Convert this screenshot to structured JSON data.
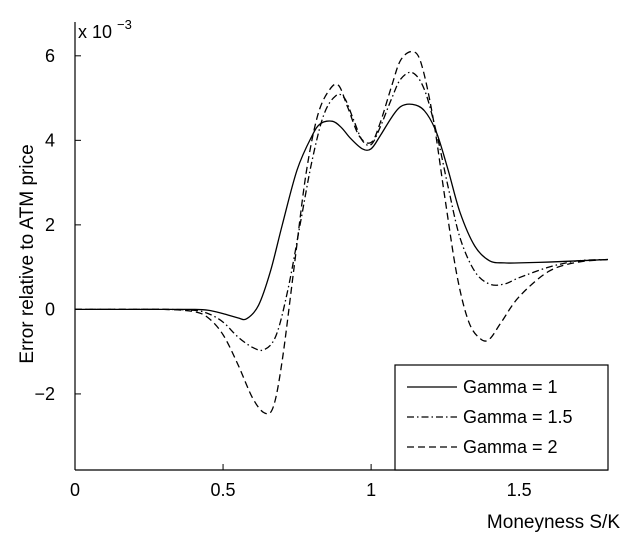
{
  "chart_data": {
    "type": "line",
    "title": "",
    "xlabel": "Moneyness S/K",
    "ylabel": "Error relative to ATM price",
    "y_exponent_label": "x 10",
    "y_exponent_power": "−3",
    "xlim": [
      0,
      1.8
    ],
    "ylim": [
      -3.8,
      6.8
    ],
    "y_scale_factor": 0.001,
    "x_ticks": [
      {
        "value": 0,
        "label": "0"
      },
      {
        "value": 0.5,
        "label": "0.5"
      },
      {
        "value": 1,
        "label": "1"
      },
      {
        "value": 1.5,
        "label": "1.5"
      }
    ],
    "y_ticks": [
      {
        "value": -2,
        "label": "−2"
      },
      {
        "value": 0,
        "label": "0"
      },
      {
        "value": 2,
        "label": "2"
      },
      {
        "value": 4,
        "label": "4"
      },
      {
        "value": 6,
        "label": "6"
      }
    ],
    "grid": false,
    "legend_position": "bottom-right",
    "series": [
      {
        "name": "Gamma = 1",
        "style": "solid",
        "color": "#000000",
        "x": [
          0,
          0.1,
          0.2,
          0.3,
          0.4,
          0.45,
          0.5,
          0.55,
          0.58,
          0.62,
          0.66,
          0.7,
          0.75,
          0.8,
          0.83,
          0.87,
          0.9,
          0.93,
          0.97,
          1.0,
          1.03,
          1.07,
          1.1,
          1.14,
          1.18,
          1.22,
          1.26,
          1.3,
          1.35,
          1.4,
          1.45,
          1.5,
          1.6,
          1.7,
          1.8
        ],
        "y": [
          0,
          0,
          0,
          0,
          0,
          -0.02,
          -0.1,
          -0.2,
          -0.22,
          0.1,
          0.9,
          2.0,
          3.3,
          4.1,
          4.4,
          4.45,
          4.3,
          4.05,
          3.8,
          3.8,
          4.1,
          4.55,
          4.8,
          4.85,
          4.7,
          4.2,
          3.3,
          2.3,
          1.5,
          1.15,
          1.1,
          1.1,
          1.12,
          1.15,
          1.18
        ]
      },
      {
        "name": "Gamma = 1.5",
        "style": "dashdot",
        "color": "#000000",
        "x": [
          0,
          0.1,
          0.2,
          0.3,
          0.4,
          0.45,
          0.5,
          0.55,
          0.6,
          0.64,
          0.68,
          0.72,
          0.76,
          0.8,
          0.84,
          0.88,
          0.91,
          0.94,
          0.97,
          1.0,
          1.03,
          1.07,
          1.1,
          1.14,
          1.18,
          1.22,
          1.26,
          1.3,
          1.35,
          1.4,
          1.45,
          1.5,
          1.6,
          1.7,
          1.8
        ],
        "y": [
          0,
          0,
          0,
          0,
          -0.02,
          -0.1,
          -0.3,
          -0.65,
          -0.9,
          -0.95,
          -0.6,
          0.5,
          2.0,
          3.5,
          4.6,
          5.05,
          5.0,
          4.5,
          4.0,
          3.9,
          4.3,
          5.0,
          5.45,
          5.6,
          5.2,
          4.2,
          2.9,
          1.7,
          0.9,
          0.6,
          0.6,
          0.75,
          1.0,
          1.15,
          1.18
        ]
      },
      {
        "name": "Gamma = 2",
        "style": "dashed",
        "color": "#000000",
        "x": [
          0,
          0.1,
          0.2,
          0.3,
          0.4,
          0.45,
          0.5,
          0.55,
          0.6,
          0.64,
          0.67,
          0.7,
          0.74,
          0.78,
          0.82,
          0.86,
          0.89,
          0.92,
          0.96,
          1.0,
          1.03,
          1.07,
          1.1,
          1.14,
          1.17,
          1.21,
          1.25,
          1.29,
          1.33,
          1.37,
          1.4,
          1.44,
          1.5,
          1.6,
          1.7,
          1.8
        ],
        "y": [
          0,
          0,
          0,
          0,
          -0.05,
          -0.2,
          -0.6,
          -1.3,
          -2.1,
          -2.45,
          -2.3,
          -1.2,
          1.0,
          3.2,
          4.6,
          5.2,
          5.3,
          4.8,
          4.1,
          3.95,
          4.4,
          5.3,
          5.9,
          6.1,
          5.8,
          4.5,
          2.6,
          0.8,
          -0.3,
          -0.7,
          -0.7,
          -0.3,
          0.3,
          0.9,
          1.12,
          1.18
        ]
      }
    ]
  }
}
